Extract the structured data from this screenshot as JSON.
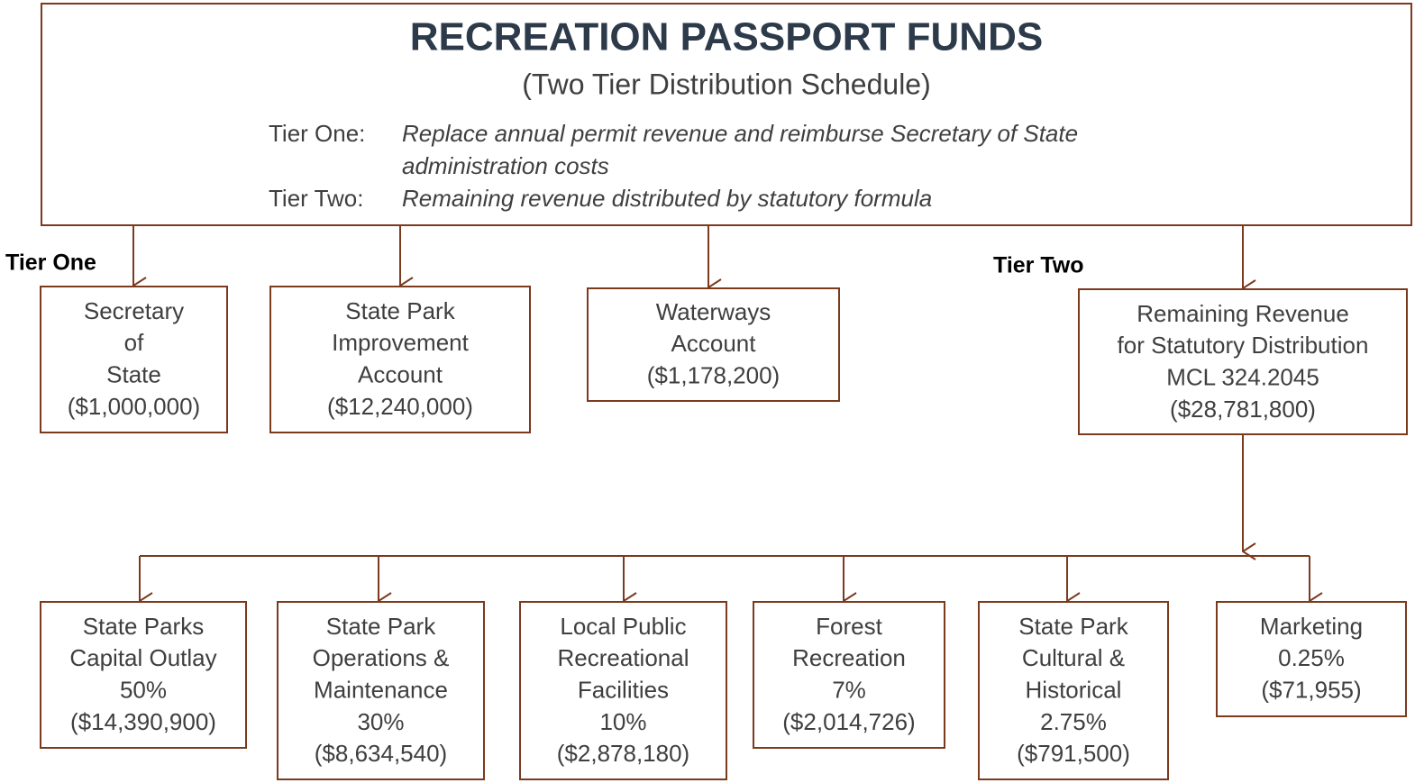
{
  "header": {
    "title": "RECREATION PASSPORT FUNDS",
    "subtitle": "(Two Tier Distribution Schedule)",
    "tiers": [
      {
        "label": "Tier One:",
        "text": [
          "Replace annual permit revenue and reimburse Secretary of State",
          "administration costs"
        ]
      },
      {
        "label": "Tier Two:",
        "text": [
          "Remaining revenue distributed by statutory formula"
        ]
      }
    ]
  },
  "labels": {
    "tier_one": "Tier One",
    "tier_two": "Tier Two"
  },
  "nodes": [
    {
      "lines": [
        "Secretary",
        "of",
        "State",
        "($1,000,000)"
      ]
    },
    {
      "lines": [
        "State Park",
        "Improvement",
        "Account",
        "($12,240,000)"
      ]
    },
    {
      "lines": [
        "Waterways",
        "Account",
        "($1,178,200)"
      ]
    },
    {
      "lines": [
        "Remaining Revenue",
        "for Statutory Distribution",
        "MCL 324.2045",
        "($28,781,800)"
      ]
    },
    {
      "lines": [
        "State Parks",
        "Capital Outlay",
        "50%",
        "($14,390,900)"
      ]
    },
    {
      "lines": [
        "State Park",
        "Operations &",
        "Maintenance",
        "30%",
        "($8,634,540)"
      ]
    },
    {
      "lines": [
        "Local Public",
        "Recreational",
        "Facilities",
        "10%",
        "($2,878,180)"
      ]
    },
    {
      "lines": [
        "Forest",
        "Recreation",
        "7%",
        "($2,014,726)"
      ]
    },
    {
      "lines": [
        "State Park",
        "Cultural &",
        "Historical",
        "2.75%",
        "($791,500)"
      ]
    },
    {
      "lines": [
        "Marketing",
        "0.25%",
        "($71,955)"
      ]
    }
  ]
}
